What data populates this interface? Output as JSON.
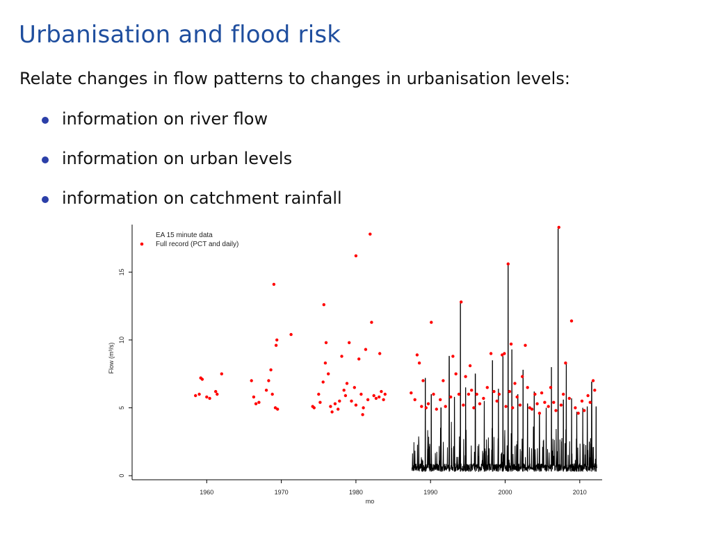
{
  "slide": {
    "title": "Urbanisation and flood risk",
    "intro": "Relate changes in flow patterns to changes in urbanisation levels:",
    "bullets": [
      "information on river flow",
      "information on urban levels",
      "information on catchment rainfall"
    ],
    "accent_color": "#1f4e9e",
    "bullet_color": "#2b3fa8"
  },
  "chart_data": {
    "type": "scatter",
    "title": "",
    "xlabel": "mo",
    "ylabel": "Flow (m³/s)",
    "xlim": [
      1950,
      2013
    ],
    "ylim": [
      -0.3,
      18.5
    ],
    "xticks": [
      1960,
      1970,
      1980,
      1990,
      2000,
      2010
    ],
    "xtick_labels": [
      "1960",
      "1970",
      "1980",
      "1990",
      "2000",
      "2010"
    ],
    "yticks": [
      0,
      5,
      10,
      15
    ],
    "ytick_labels": [
      "0",
      "5",
      "10",
      "15"
    ],
    "grid": false,
    "legend_position": "top-left",
    "series": [
      {
        "name": "EA 15 minute data",
        "kind": "line",
        "color": "#000000",
        "x_range": [
          1987.5,
          2012.3
        ],
        "baseline": 0.3,
        "peaks": [
          [
            1989.3,
            7.2
          ],
          [
            1990.1,
            6.0
          ],
          [
            1991.4,
            5.0
          ],
          [
            1992.5,
            8.8
          ],
          [
            1993.2,
            5.8
          ],
          [
            1994.0,
            12.8
          ],
          [
            1994.7,
            6.5
          ],
          [
            1996.0,
            7.5
          ],
          [
            1997.2,
            5.5
          ],
          [
            1998.3,
            8.5
          ],
          [
            1999.1,
            6.4
          ],
          [
            1999.7,
            8.8
          ],
          [
            2000.4,
            15.7
          ],
          [
            2000.9,
            9.3
          ],
          [
            2001.7,
            6.0
          ],
          [
            2002.4,
            7.8
          ],
          [
            2003.0,
            5.3
          ],
          [
            2003.9,
            6.2
          ],
          [
            2004.6,
            4.6
          ],
          [
            2005.5,
            5.0
          ],
          [
            2006.2,
            8.0
          ],
          [
            2007.1,
            18.2
          ],
          [
            2007.8,
            5.6
          ],
          [
            2008.2,
            8.3
          ],
          [
            2008.9,
            5.7
          ],
          [
            2009.6,
            4.7
          ],
          [
            2010.4,
            5.0
          ],
          [
            2011.0,
            5.1
          ],
          [
            2011.6,
            6.9
          ],
          [
            2012.2,
            5.1
          ]
        ]
      },
      {
        "name": "Full record (PCT and daily)",
        "kind": "points",
        "color": "#ff0000",
        "points": [
          [
            1958.5,
            5.9
          ],
          [
            1959.0,
            6.0
          ],
          [
            1959.2,
            7.2
          ],
          [
            1959.4,
            7.1
          ],
          [
            1960.0,
            5.8
          ],
          [
            1960.4,
            5.7
          ],
          [
            1961.2,
            6.2
          ],
          [
            1961.4,
            6.0
          ],
          [
            1962.0,
            7.5
          ],
          [
            1966.0,
            7.0
          ],
          [
            1966.3,
            5.8
          ],
          [
            1966.6,
            5.3
          ],
          [
            1967.0,
            5.4
          ],
          [
            1968.0,
            6.3
          ],
          [
            1968.3,
            7.0
          ],
          [
            1968.6,
            7.8
          ],
          [
            1968.8,
            6.0
          ],
          [
            1969.0,
            14.1
          ],
          [
            1969.2,
            5.0
          ],
          [
            1969.3,
            9.6
          ],
          [
            1969.4,
            10.0
          ],
          [
            1969.5,
            4.9
          ],
          [
            1971.3,
            10.4
          ],
          [
            1974.2,
            5.1
          ],
          [
            1974.4,
            5.0
          ],
          [
            1975.0,
            6.0
          ],
          [
            1975.2,
            5.4
          ],
          [
            1975.6,
            6.9
          ],
          [
            1975.7,
            12.6
          ],
          [
            1975.9,
            8.3
          ],
          [
            1976.0,
            9.8
          ],
          [
            1976.3,
            7.5
          ],
          [
            1976.6,
            5.1
          ],
          [
            1976.8,
            4.7
          ],
          [
            1977.2,
            5.3
          ],
          [
            1977.6,
            4.9
          ],
          [
            1977.8,
            5.5
          ],
          [
            1978.1,
            8.8
          ],
          [
            1978.4,
            6.3
          ],
          [
            1978.6,
            5.9
          ],
          [
            1978.8,
            6.8
          ],
          [
            1979.1,
            9.8
          ],
          [
            1979.4,
            5.5
          ],
          [
            1979.8,
            6.5
          ],
          [
            1980.0,
            5.2
          ],
          [
            1980.0,
            16.2
          ],
          [
            1980.4,
            8.6
          ],
          [
            1980.7,
            6.0
          ],
          [
            1980.9,
            4.5
          ],
          [
            1981.0,
            5.0
          ],
          [
            1981.3,
            9.3
          ],
          [
            1981.6,
            5.6
          ],
          [
            1981.9,
            17.8
          ],
          [
            1982.1,
            11.3
          ],
          [
            1982.4,
            5.9
          ],
          [
            1982.7,
            5.7
          ],
          [
            1983.1,
            5.8
          ],
          [
            1983.2,
            9.0
          ],
          [
            1983.4,
            6.2
          ],
          [
            1983.7,
            5.6
          ],
          [
            1983.9,
            6.0
          ],
          [
            1987.4,
            6.1
          ],
          [
            1987.9,
            5.6
          ],
          [
            1988.2,
            8.9
          ],
          [
            1988.5,
            8.3
          ],
          [
            1988.8,
            5.1
          ],
          [
            1989.0,
            7.0
          ],
          [
            1989.4,
            5.0
          ],
          [
            1989.7,
            5.3
          ],
          [
            1990.1,
            11.3
          ],
          [
            1990.4,
            6.0
          ],
          [
            1990.8,
            4.9
          ],
          [
            1991.3,
            5.6
          ],
          [
            1991.7,
            7.0
          ],
          [
            1992.0,
            5.1
          ],
          [
            1992.7,
            5.8
          ],
          [
            1993.0,
            8.8
          ],
          [
            1993.4,
            7.5
          ],
          [
            1993.8,
            6.0
          ],
          [
            1994.1,
            12.8
          ],
          [
            1994.4,
            5.2
          ],
          [
            1994.7,
            7.3
          ],
          [
            1995.1,
            6.0
          ],
          [
            1995.3,
            8.1
          ],
          [
            1995.5,
            6.3
          ],
          [
            1995.8,
            5.0
          ],
          [
            1996.2,
            6.0
          ],
          [
            1996.6,
            5.3
          ],
          [
            1997.1,
            5.7
          ],
          [
            1997.6,
            6.5
          ],
          [
            1998.1,
            9.0
          ],
          [
            1998.5,
            6.2
          ],
          [
            1998.9,
            5.5
          ],
          [
            1999.2,
            6.0
          ],
          [
            1999.6,
            8.9
          ],
          [
            1999.9,
            9.0
          ],
          [
            2000.1,
            5.1
          ],
          [
            2000.4,
            15.6
          ],
          [
            2000.6,
            6.2
          ],
          [
            2000.8,
            9.7
          ],
          [
            2001.0,
            5.0
          ],
          [
            2001.3,
            6.8
          ],
          [
            2001.6,
            5.8
          ],
          [
            2002.0,
            5.2
          ],
          [
            2002.3,
            7.3
          ],
          [
            2002.7,
            9.6
          ],
          [
            2003.0,
            6.5
          ],
          [
            2003.3,
            5.0
          ],
          [
            2003.6,
            4.9
          ],
          [
            2004.0,
            6.0
          ],
          [
            2004.3,
            5.3
          ],
          [
            2004.6,
            4.6
          ],
          [
            2004.9,
            6.1
          ],
          [
            2005.3,
            5.4
          ],
          [
            2005.8,
            5.1
          ],
          [
            2006.1,
            6.5
          ],
          [
            2006.5,
            5.4
          ],
          [
            2006.8,
            4.8
          ],
          [
            2007.2,
            18.3
          ],
          [
            2007.5,
            5.2
          ],
          [
            2007.8,
            6.0
          ],
          [
            2008.1,
            8.3
          ],
          [
            2008.6,
            5.7
          ],
          [
            2008.9,
            11.4
          ],
          [
            2009.4,
            5.0
          ],
          [
            2009.8,
            4.6
          ],
          [
            2010.3,
            5.5
          ],
          [
            2010.6,
            4.8
          ],
          [
            2011.1,
            5.9
          ],
          [
            2011.4,
            5.4
          ],
          [
            2011.8,
            7.0
          ],
          [
            2012.0,
            6.3
          ]
        ]
      }
    ]
  }
}
